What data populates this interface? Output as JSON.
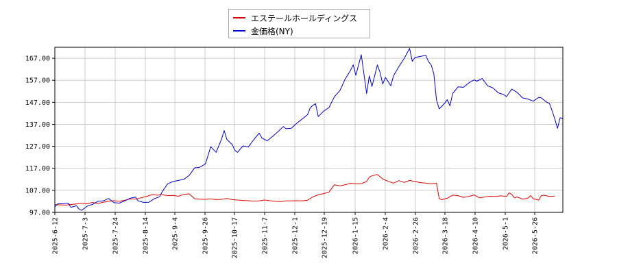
{
  "chart_data": {
    "type": "line",
    "title": "",
    "xlabel": "",
    "ylabel": "",
    "ylim": [
      97,
      172
    ],
    "y_ticks": [
      "97.00",
      "107.00",
      "117.00",
      "127.00",
      "137.00",
      "147.00",
      "157.00",
      "167.00"
    ],
    "x_ticks": [
      "2025-6-12",
      "2025-7-3",
      "2025-7-24",
      "2025-8-14",
      "2025-9-4",
      "2025-9-26",
      "2025-10-17",
      "2025-11-7",
      "2025-12-1",
      "2025-12-19",
      "2026-1-15",
      "2026-2-4",
      "2026-2-26",
      "2026-3-18",
      "2026-4-10",
      "2026-5-1",
      "2026-5-26"
    ],
    "grid": true,
    "legend_position": "top-center",
    "series": [
      {
        "name": "エステールホールディングス",
        "color": "#dd0000",
        "points": [
          [
            0,
            100.5
          ],
          [
            4,
            100.3
          ],
          [
            8,
            100.8
          ],
          [
            10,
            101.2
          ],
          [
            12,
            100.9
          ],
          [
            14,
            101.5
          ],
          [
            16,
            101.0
          ],
          [
            18,
            101.6
          ],
          [
            20,
            102.0
          ],
          [
            22,
            102.3
          ],
          [
            24,
            102.0
          ],
          [
            26,
            102.5
          ],
          [
            28,
            103.1
          ],
          [
            30,
            103.0
          ],
          [
            32,
            103.6
          ],
          [
            34,
            104.2
          ],
          [
            36,
            105.0
          ],
          [
            38,
            104.8
          ],
          [
            40,
            105.0
          ],
          [
            42,
            104.6
          ],
          [
            44,
            104.7
          ],
          [
            46,
            104.3
          ],
          [
            48,
            105.2
          ],
          [
            50,
            105.4
          ],
          [
            52,
            103.2
          ],
          [
            54,
            103.0
          ],
          [
            56,
            102.9
          ],
          [
            58,
            103.1
          ],
          [
            60,
            102.8
          ],
          [
            62,
            102.9
          ],
          [
            64,
            103.3
          ],
          [
            66,
            102.8
          ],
          [
            68,
            102.6
          ],
          [
            70,
            102.4
          ],
          [
            72,
            102.3
          ],
          [
            74,
            102.1
          ],
          [
            76,
            102.2
          ],
          [
            78,
            102.6
          ],
          [
            80,
            102.3
          ],
          [
            82,
            102.0
          ],
          [
            84,
            101.9
          ],
          [
            86,
            102.2
          ],
          [
            88,
            102.2
          ],
          [
            90,
            102.3
          ],
          [
            92,
            102.2
          ],
          [
            94,
            102.5
          ],
          [
            96,
            104.0
          ],
          [
            98,
            105.0
          ],
          [
            100,
            105.5
          ],
          [
            102,
            106.2
          ],
          [
            104,
            109.5
          ],
          [
            106,
            109.0
          ],
          [
            108,
            109.5
          ],
          [
            110,
            110.2
          ],
          [
            112,
            110.0
          ],
          [
            114,
            110.0
          ],
          [
            116,
            111.0
          ],
          [
            117,
            113.0
          ],
          [
            118,
            113.6
          ],
          [
            120,
            114.2
          ],
          [
            122,
            112.2
          ],
          [
            124,
            111.1
          ],
          [
            126,
            110.3
          ],
          [
            128,
            111.4
          ],
          [
            130,
            110.6
          ],
          [
            132,
            111.5
          ],
          [
            134,
            111.0
          ],
          [
            136,
            110.5
          ],
          [
            138,
            110.3
          ],
          [
            140,
            110.0
          ],
          [
            142,
            110.2
          ],
          [
            143,
            103.2
          ],
          [
            144,
            102.8
          ],
          [
            146,
            103.4
          ],
          [
            148,
            104.8
          ],
          [
            150,
            104.6
          ],
          [
            152,
            103.8
          ],
          [
            154,
            104.2
          ],
          [
            156,
            104.9
          ],
          [
            158,
            103.6
          ],
          [
            160,
            104.0
          ],
          [
            162,
            104.3
          ],
          [
            164,
            104.2
          ],
          [
            166,
            104.5
          ],
          [
            168,
            104.2
          ],
          [
            169,
            105.8
          ],
          [
            170,
            105.2
          ],
          [
            171,
            103.6
          ],
          [
            172,
            104.0
          ],
          [
            174,
            103.0
          ],
          [
            176,
            103.4
          ],
          [
            177,
            104.6
          ],
          [
            178,
            103.2
          ],
          [
            180,
            102.6
          ],
          [
            181,
            104.5
          ],
          [
            182,
            104.8
          ],
          [
            184,
            104.2
          ],
          [
            186,
            104.4
          ]
        ]
      },
      {
        "name": "金価格(NY)",
        "color": "#0000cc",
        "points": [
          [
            0,
            99.5
          ],
          [
            1,
            100.8
          ],
          [
            3,
            101.0
          ],
          [
            5,
            101.2
          ],
          [
            6,
            99.3
          ],
          [
            8,
            100.0
          ],
          [
            9,
            98.5
          ],
          [
            10,
            97.9
          ],
          [
            11,
            98.8
          ],
          [
            12,
            99.8
          ],
          [
            14,
            100.6
          ],
          [
            16,
            102.0
          ],
          [
            18,
            102.2
          ],
          [
            20,
            103.3
          ],
          [
            22,
            101.4
          ],
          [
            24,
            101.2
          ],
          [
            26,
            102.2
          ],
          [
            28,
            103.4
          ],
          [
            30,
            103.9
          ],
          [
            31,
            102.2
          ],
          [
            33,
            101.5
          ],
          [
            35,
            101.6
          ],
          [
            37,
            103.2
          ],
          [
            39,
            104.1
          ],
          [
            40,
            106.5
          ],
          [
            42,
            110.0
          ],
          [
            44,
            111.0
          ],
          [
            46,
            111.5
          ],
          [
            48,
            112.0
          ],
          [
            50,
            113.8
          ],
          [
            52,
            117.2
          ],
          [
            54,
            117.5
          ],
          [
            56,
            119.0
          ],
          [
            58,
            126.8
          ],
          [
            60,
            124.3
          ],
          [
            62,
            130.2
          ],
          [
            63,
            134.2
          ],
          [
            64,
            130.1
          ],
          [
            66,
            127.8
          ],
          [
            67,
            125.1
          ],
          [
            68,
            124.3
          ],
          [
            70,
            127.2
          ],
          [
            72,
            126.7
          ],
          [
            74,
            130.0
          ],
          [
            76,
            133.0
          ],
          [
            77,
            130.8
          ],
          [
            79,
            129.5
          ],
          [
            81,
            131.5
          ],
          [
            83,
            133.6
          ],
          [
            85,
            136.0
          ],
          [
            86,
            135.0
          ],
          [
            88,
            135.2
          ],
          [
            90,
            137.5
          ],
          [
            92,
            139.4
          ],
          [
            94,
            141.3
          ],
          [
            95,
            144.5
          ],
          [
            96,
            145.6
          ],
          [
            97,
            146.4
          ],
          [
            98,
            140.5
          ],
          [
            100,
            143.0
          ],
          [
            102,
            144.6
          ],
          [
            104,
            149.5
          ],
          [
            106,
            152.2
          ],
          [
            108,
            157.5
          ],
          [
            110,
            161.5
          ],
          [
            111,
            164.0
          ],
          [
            112,
            159.3
          ],
          [
            114,
            168.6
          ],
          [
            116,
            151.0
          ],
          [
            117,
            159.0
          ],
          [
            118,
            154.2
          ],
          [
            120,
            164.0
          ],
          [
            121,
            160.5
          ],
          [
            122,
            155.3
          ],
          [
            123,
            158.3
          ],
          [
            125,
            154.5
          ],
          [
            126,
            159.0
          ],
          [
            128,
            163.2
          ],
          [
            130,
            167.0
          ],
          [
            132,
            171.5
          ],
          [
            133,
            165.6
          ],
          [
            134,
            167.4
          ],
          [
            136,
            167.8
          ],
          [
            138,
            168.4
          ],
          [
            139,
            165.5
          ],
          [
            140,
            164.0
          ],
          [
            141,
            160.0
          ],
          [
            142,
            148.0
          ],
          [
            143,
            144.0
          ],
          [
            145,
            146.5
          ],
          [
            146,
            148.2
          ],
          [
            147,
            145.4
          ],
          [
            148,
            151.0
          ],
          [
            150,
            154.0
          ],
          [
            152,
            153.8
          ],
          [
            154,
            155.8
          ],
          [
            156,
            157.2
          ],
          [
            157,
            156.6
          ],
          [
            159,
            157.8
          ],
          [
            161,
            154.5
          ],
          [
            163,
            153.5
          ],
          [
            165,
            151.3
          ],
          [
            167,
            150.5
          ],
          [
            168,
            149.6
          ],
          [
            170,
            153.0
          ],
          [
            172,
            151.5
          ],
          [
            174,
            149.0
          ],
          [
            176,
            148.5
          ],
          [
            178,
            147.5
          ],
          [
            180,
            149.2
          ],
          [
            181,
            149.0
          ],
          [
            183,
            147.0
          ],
          [
            184,
            146.5
          ],
          [
            185,
            143.2
          ],
          [
            186,
            139.5
          ],
          [
            187,
            135.2
          ],
          [
            188,
            140.0
          ],
          [
            189,
            139.5
          ]
        ]
      }
    ]
  },
  "legend": {
    "item1": "エステールホールディングス",
    "item2": "金価格(NY)"
  }
}
